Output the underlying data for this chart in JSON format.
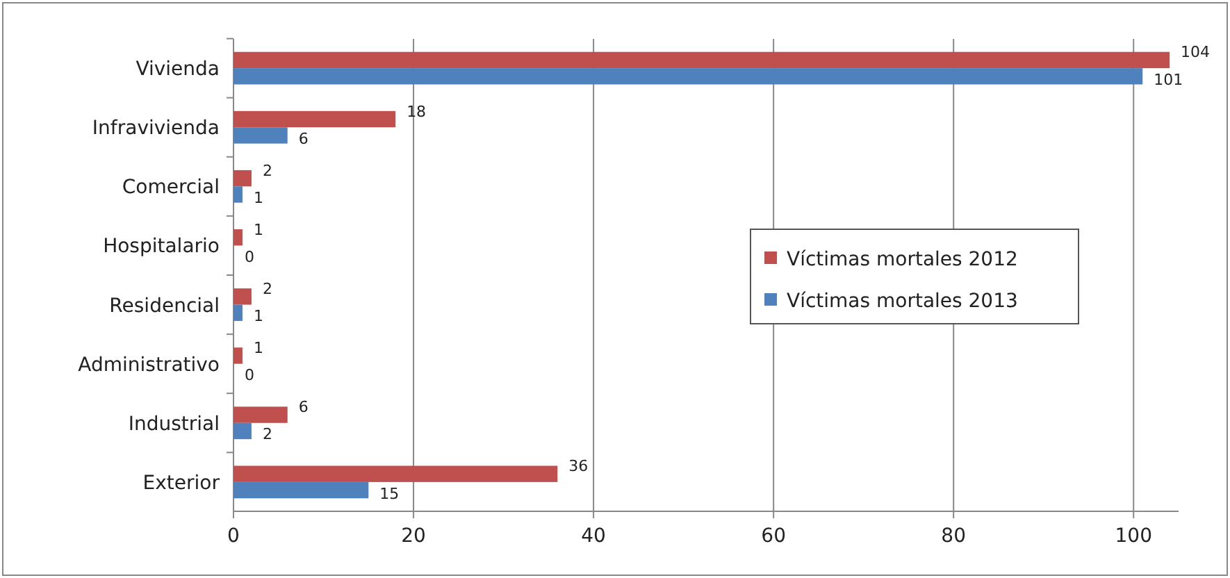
{
  "chart_data": {
    "type": "bar",
    "orientation": "horizontal",
    "categories": [
      "Vivienda",
      "Infravivienda",
      "Comercial",
      "Hospitalario",
      "Residencial",
      "Administrativo",
      "Industrial",
      "Exterior"
    ],
    "series": [
      {
        "name": "Víctimas mortales 2012",
        "color": "#c0504d",
        "values": [
          104,
          18,
          2,
          1,
          2,
          1,
          6,
          36
        ]
      },
      {
        "name": "Víctimas mortales 2013",
        "color": "#4f81bd",
        "values": [
          101,
          6,
          1,
          0,
          1,
          0,
          2,
          15
        ]
      }
    ],
    "xlim": [
      0,
      105
    ],
    "xticks": [
      0,
      20,
      40,
      60,
      80,
      100
    ],
    "grid": "x",
    "legend": "right",
    "data_labels": true
  }
}
